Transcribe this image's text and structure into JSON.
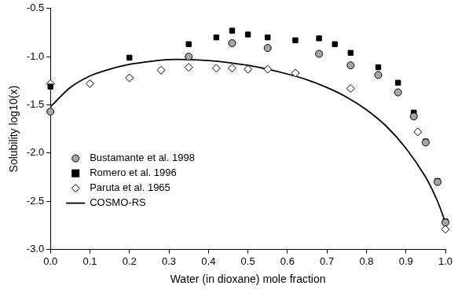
{
  "chart_data": {
    "type": "scatter",
    "x_label": "Water (in dioxane) mole fraction",
    "y_label": "Solubility log10(x)",
    "xlim": [
      0,
      1
    ],
    "xticks": [
      {
        "value": 0,
        "label": "0.0"
      },
      0.1,
      0.2,
      0.3,
      0.4,
      0.5,
      0.6,
      0.7,
      0.8,
      0.9,
      {
        "value": 1,
        "label": "1.0"
      }
    ],
    "ylim": [
      -3,
      -0.5
    ],
    "yticks": [
      {
        "value": -3,
        "label": "-3.0"
      },
      -2.5,
      {
        "value": -2,
        "label": "-2.0"
      },
      -1.5,
      {
        "value": -1,
        "label": "-1.0"
      },
      -0.5
    ],
    "grid": false,
    "legend": "bottom-left",
    "series": [
      {
        "name": "Bustamante et al. 1998",
        "type": "scatter",
        "marker": "circle",
        "color": "#a6a6a6",
        "x": [
          0,
          0.35,
          0.46,
          0.55,
          0.68,
          0.76,
          0.83,
          0.88,
          0.92,
          0.95,
          0.98,
          1.0
        ],
        "values": [
          -1.57,
          -1.0,
          -0.86,
          -0.91,
          -0.97,
          -1.09,
          -1.19,
          -1.37,
          -1.62,
          -1.89,
          -2.3,
          -2.72
        ]
      },
      {
        "name": "Romero et al. 1996",
        "type": "scatter",
        "marker": "square",
        "color": "#000000",
        "x": [
          0,
          0.2,
          0.35,
          0.42,
          0.46,
          0.5,
          0.55,
          0.62,
          0.68,
          0.72,
          0.76,
          0.83,
          0.88,
          0.92,
          0.95,
          0.98,
          1.0
        ],
        "values": [
          -1.31,
          -1.01,
          -0.87,
          -0.8,
          -0.73,
          -0.77,
          -0.8,
          -0.83,
          -0.81,
          -0.87,
          -0.96,
          -1.11,
          -1.27,
          -1.58,
          -1.88,
          -2.29,
          -2.71
        ]
      },
      {
        "name": "Paruta et al. 1965",
        "type": "scatter",
        "marker": "diamond",
        "color": "#ffffff",
        "x": [
          0,
          0.1,
          0.2,
          0.28,
          0.35,
          0.42,
          0.46,
          0.5,
          0.55,
          0.62,
          0.76,
          0.93,
          1.0
        ],
        "values": [
          -1.28,
          -1.28,
          -1.22,
          -1.14,
          -1.11,
          -1.12,
          -1.12,
          -1.13,
          -1.13,
          -1.17,
          -1.33,
          -1.78,
          -2.79
        ]
      },
      {
        "name": "COSMO-RS",
        "type": "line",
        "marker": "none",
        "line_style": "solid",
        "color": "#000000",
        "x": [
          0,
          0.05,
          0.1,
          0.15,
          0.2,
          0.25,
          0.3,
          0.35,
          0.4,
          0.45,
          0.5,
          0.55,
          0.6,
          0.65,
          0.7,
          0.75,
          0.8,
          0.85,
          0.9,
          0.95,
          0.98,
          1.0
        ],
        "values": [
          -1.52,
          -1.32,
          -1.2,
          -1.13,
          -1.08,
          -1.05,
          -1.03,
          -1.03,
          -1.04,
          -1.06,
          -1.09,
          -1.13,
          -1.18,
          -1.24,
          -1.32,
          -1.42,
          -1.55,
          -1.72,
          -1.95,
          -2.25,
          -2.5,
          -2.72
        ]
      }
    ]
  }
}
